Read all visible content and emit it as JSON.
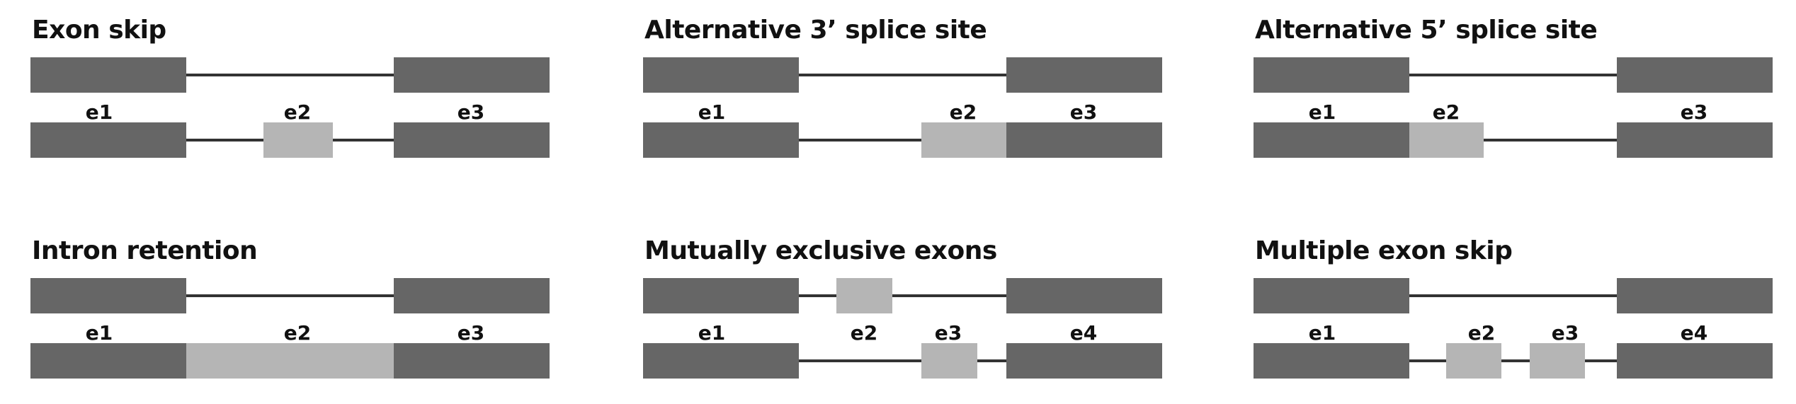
{
  "colors": {
    "constitutive_exon": "#666666",
    "alternative_exon": "#b5b5b5",
    "intron_line": "#333333",
    "text": "#111111"
  },
  "panels": [
    {
      "title": "Exon skip",
      "top_track": {
        "exons": [
          {
            "kind": "constitutive"
          },
          {
            "kind": "constitutive"
          }
        ]
      },
      "labels": [
        "e1",
        "e2",
        "e3"
      ],
      "bottom_track": {
        "exons": [
          {
            "kind": "constitutive"
          },
          {
            "kind": "alternative"
          },
          {
            "kind": "constitutive"
          }
        ]
      }
    },
    {
      "title": "Alternative 3’ splice site",
      "top_track": {
        "exons": [
          {
            "kind": "constitutive"
          },
          {
            "kind": "constitutive"
          }
        ]
      },
      "labels": [
        "e1",
        "e2",
        "e3"
      ],
      "bottom_track": {
        "exons": [
          {
            "kind": "constitutive"
          },
          {
            "kind": "alternative"
          },
          {
            "kind": "constitutive"
          }
        ]
      }
    },
    {
      "title": "Alternative 5’ splice site",
      "top_track": {
        "exons": [
          {
            "kind": "constitutive"
          },
          {
            "kind": "constitutive"
          }
        ]
      },
      "labels": [
        "e1",
        "e2",
        "e3"
      ],
      "bottom_track": {
        "exons": [
          {
            "kind": "constitutive"
          },
          {
            "kind": "alternative"
          },
          {
            "kind": "constitutive"
          }
        ]
      }
    },
    {
      "title": "Intron retention",
      "top_track": {
        "exons": [
          {
            "kind": "constitutive"
          },
          {
            "kind": "constitutive"
          }
        ]
      },
      "labels": [
        "e1",
        "e2",
        "e3"
      ],
      "bottom_track": {
        "exons": [
          {
            "kind": "constitutive"
          },
          {
            "kind": "alternative"
          },
          {
            "kind": "constitutive"
          }
        ]
      }
    },
    {
      "title": "Mutually exclusive exons",
      "top_track": {
        "exons": [
          {
            "kind": "constitutive"
          },
          {
            "kind": "alternative"
          },
          {
            "kind": "constitutive"
          }
        ]
      },
      "labels": [
        "e1",
        "e2",
        "e3",
        "e4"
      ],
      "bottom_track": {
        "exons": [
          {
            "kind": "constitutive"
          },
          {
            "kind": "alternative"
          },
          {
            "kind": "constitutive"
          }
        ]
      }
    },
    {
      "title": "Multiple exon skip",
      "top_track": {
        "exons": [
          {
            "kind": "constitutive"
          },
          {
            "kind": "constitutive"
          }
        ]
      },
      "labels": [
        "e1",
        "e2",
        "e3",
        "e4"
      ],
      "bottom_track": {
        "exons": [
          {
            "kind": "constitutive"
          },
          {
            "kind": "alternative"
          },
          {
            "kind": "alternative"
          },
          {
            "kind": "constitutive"
          }
        ]
      }
    }
  ]
}
